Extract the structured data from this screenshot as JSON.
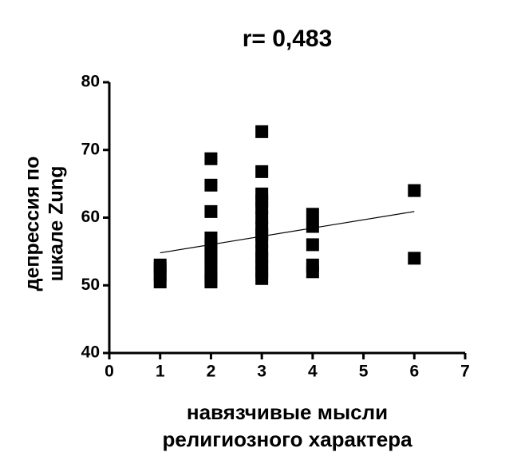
{
  "chart_data": {
    "type": "scatter",
    "title": "r= 0,483",
    "xlabel": [
      "навязчивые мысли",
      "религиозного характера"
    ],
    "ylabel": [
      "депрессия по",
      "шкале Zung"
    ],
    "x": [
      1,
      1,
      1,
      1,
      2,
      2,
      2,
      2,
      2,
      2,
      2,
      2,
      2,
      2,
      2,
      3,
      3,
      3,
      3,
      3,
      3,
      3,
      3,
      3,
      3,
      3,
      3,
      3,
      3,
      4,
      4,
      4,
      4,
      4,
      6,
      6
    ],
    "y": [
      50.5,
      51.5,
      52.5,
      53,
      68.7,
      64.8,
      60.9,
      57,
      56,
      55,
      54,
      53,
      52,
      51,
      50.5,
      72.7,
      66.8,
      63.5,
      62.5,
      61.5,
      60,
      58.5,
      57.5,
      56.5,
      55,
      54,
      53,
      52,
      51,
      60.5,
      58.7,
      56,
      53,
      52,
      64,
      54
    ],
    "color": "#000000",
    "fit_line": {
      "x": [
        1,
        6
      ],
      "y": [
        54.8,
        60.9
      ]
    },
    "xlim": [
      0,
      7
    ],
    "xticks": [
      0,
      1,
      2,
      3,
      4,
      5,
      6,
      7
    ],
    "ylim": [
      40,
      80
    ],
    "yticks": [
      40,
      50,
      60,
      70,
      80
    ],
    "grid": false
  }
}
